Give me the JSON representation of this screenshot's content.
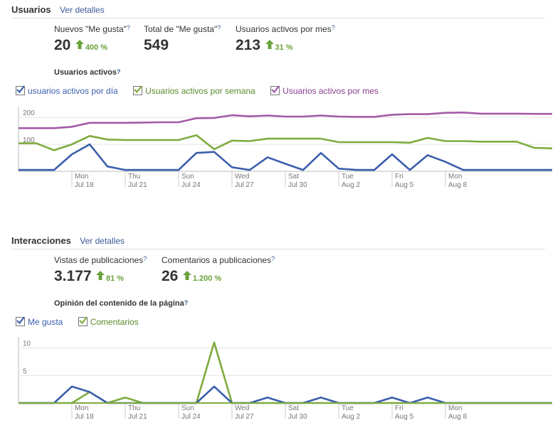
{
  "usuarios": {
    "title": "Usuarios",
    "link": "Ver detalles",
    "stats": [
      {
        "label": "Nuevos \"Me gusta\"",
        "value": "20",
        "change": "400 %"
      },
      {
        "label": "Total de \"Me gusta\"",
        "value": "549",
        "change": ""
      },
      {
        "label": "Usuarios activos por mes",
        "value": "213",
        "change": "31 %"
      }
    ],
    "chart_title": "Usuarios activos",
    "legend": [
      "usuarios activos por día",
      "Usuarios activos por semana",
      "Usuarios activos por mes"
    ]
  },
  "interacciones": {
    "title": "Interacciones",
    "link": "Ver detalles",
    "stats": [
      {
        "label": "Vistas de publicaciones",
        "value": "3.177",
        "change": "81 %"
      },
      {
        "label": "Comentarios a publicaciones",
        "value": "26",
        "change": "1.200 %"
      }
    ],
    "chart_title": "Opinión del contenido de la página",
    "legend": [
      "Me gusta",
      "Comentarios"
    ]
  },
  "help_mark": "?",
  "colors": {
    "blue": "#3b5ead",
    "green": "#7fab3f",
    "purple": "#a35ba8",
    "link": "#3b5998"
  },
  "chart_data": [
    {
      "type": "line",
      "title": "Usuarios activos",
      "x": [
        "Jul 15",
        "Jul 16",
        "Jul 17",
        "Jul 18",
        "Jul 19",
        "Jul 20",
        "Jul 21",
        "Jul 22",
        "Jul 23",
        "Jul 24",
        "Jul 25",
        "Jul 26",
        "Jul 27",
        "Jul 28",
        "Jul 29",
        "Jul 30",
        "Jul 31",
        "Aug 1",
        "Aug 2",
        "Aug 3",
        "Aug 4",
        "Aug 5",
        "Aug 6",
        "Aug 7",
        "Aug 8",
        "Aug 9",
        "Aug 10",
        "Aug 11",
        "Aug 12",
        "Aug 13",
        "Aug 14"
      ],
      "tick_labels": [
        {
          "day": "Mon",
          "date": "Jul 18"
        },
        {
          "day": "Thu",
          "date": "Jul 21"
        },
        {
          "day": "Sun",
          "date": "Jul 24"
        },
        {
          "day": "Wed",
          "date": "Jul 27"
        },
        {
          "day": "Sat",
          "date": "Jul 30"
        },
        {
          "day": "Tue",
          "date": "Aug 2"
        },
        {
          "day": "Fri",
          "date": "Aug 5"
        },
        {
          "day": "Mon",
          "date": "Aug 8"
        }
      ],
      "yticks": [
        100,
        200
      ],
      "ylim": [
        0,
        240
      ],
      "series": [
        {
          "name": "Usuarios activos por mes",
          "color": "#a35ba8",
          "values": [
            160,
            160,
            160,
            165,
            180,
            180,
            180,
            181,
            182,
            182,
            197,
            198,
            208,
            204,
            207,
            203,
            203,
            207,
            203,
            202,
            202,
            210,
            212,
            212,
            217,
            218,
            214,
            214,
            214,
            213,
            213
          ]
        },
        {
          "name": "Usuarios activos por semana",
          "color": "#7fab3f",
          "values": [
            104,
            104,
            78,
            100,
            131,
            118,
            116,
            116,
            116,
            116,
            134,
            82,
            114,
            112,
            121,
            121,
            121,
            121,
            108,
            108,
            108,
            108,
            106,
            124,
            112,
            112,
            110,
            110,
            110,
            87,
            85
          ]
        },
        {
          "name": "usuarios activos por día",
          "color": "#3b5ead",
          "values": [
            5,
            5,
            5,
            63,
            100,
            18,
            5,
            5,
            5,
            5,
            68,
            72,
            15,
            5,
            52,
            28,
            5,
            68,
            10,
            5,
            5,
            63,
            5,
            60,
            35,
            5,
            5,
            5,
            5,
            5,
            5
          ]
        }
      ]
    },
    {
      "type": "line",
      "title": "Opinión del contenido de la página",
      "x": [
        "Jul 15",
        "Jul 16",
        "Jul 17",
        "Jul 18",
        "Jul 19",
        "Jul 20",
        "Jul 21",
        "Jul 22",
        "Jul 23",
        "Jul 24",
        "Jul 25",
        "Jul 26",
        "Jul 27",
        "Jul 28",
        "Jul 29",
        "Jul 30",
        "Jul 31",
        "Aug 1",
        "Aug 2",
        "Aug 3",
        "Aug 4",
        "Aug 5",
        "Aug 6",
        "Aug 7",
        "Aug 8",
        "Aug 9",
        "Aug 10",
        "Aug 11",
        "Aug 12",
        "Aug 13",
        "Aug 14"
      ],
      "tick_labels": [
        {
          "day": "Mon",
          "date": "Jul 18"
        },
        {
          "day": "Thu",
          "date": "Jul 21"
        },
        {
          "day": "Sun",
          "date": "Jul 24"
        },
        {
          "day": "Wed",
          "date": "Jul 27"
        },
        {
          "day": "Sat",
          "date": "Jul 30"
        },
        {
          "day": "Tue",
          "date": "Aug 2"
        },
        {
          "day": "Fri",
          "date": "Aug 5"
        },
        {
          "day": "Mon",
          "date": "Aug 8"
        }
      ],
      "yticks": [
        5,
        10
      ],
      "ylim": [
        0,
        12
      ],
      "series": [
        {
          "name": "Comentarios",
          "color": "#7fab3f",
          "values": [
            0,
            0,
            0,
            0,
            2,
            0,
            1,
            0,
            0,
            0,
            0,
            11,
            0,
            0,
            0,
            0,
            0,
            0,
            0,
            0,
            0,
            0,
            0,
            0,
            0,
            0,
            0,
            0,
            0,
            0,
            0
          ]
        },
        {
          "name": "Me gusta",
          "color": "#3b5ead",
          "values": [
            0,
            0,
            0,
            3,
            2,
            0,
            0,
            0,
            0,
            0,
            0,
            3,
            0,
            0,
            1,
            0,
            0,
            1,
            0,
            0,
            0,
            1,
            0,
            1,
            0,
            0,
            0,
            0,
            0,
            0,
            0
          ]
        }
      ]
    }
  ]
}
